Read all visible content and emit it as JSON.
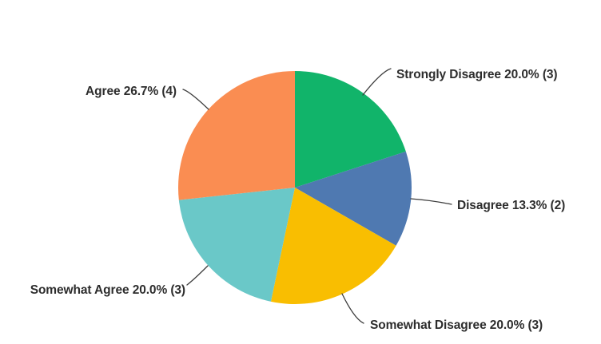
{
  "chart_data": {
    "type": "pie",
    "title": "",
    "legend_position": "none",
    "background": "#FFFFFF",
    "label_color": "#2D2D2D",
    "leader_line_color": "#3D3D3D",
    "direction": "clockwise",
    "start_angle_deg": 0,
    "percent_total": 100,
    "slices": [
      {
        "label": "Strongly Disagree",
        "pct": 20.0,
        "count": 3,
        "color": "#11B46A",
        "display_label": "Strongly Disagree 20.0% (3)"
      },
      {
        "label": "Disagree",
        "pct": 13.3,
        "count": 2,
        "color": "#4F79B1",
        "display_label": "Disagree 13.3% (2)"
      },
      {
        "label": "Somewhat Disagree",
        "pct": 20.0,
        "count": 3,
        "color": "#F9BE01",
        "display_label": "Somewhat Disagree 20.0% (3)"
      },
      {
        "label": "Somewhat Agree",
        "pct": 20.0,
        "count": 3,
        "color": "#6AC8C8",
        "display_label": "Somewhat Agree 20.0% (3)"
      },
      {
        "label": "Agree",
        "pct": 26.7,
        "count": 4,
        "color": "#FA8D52",
        "display_label": "Agree 26.7% (4)"
      }
    ]
  }
}
